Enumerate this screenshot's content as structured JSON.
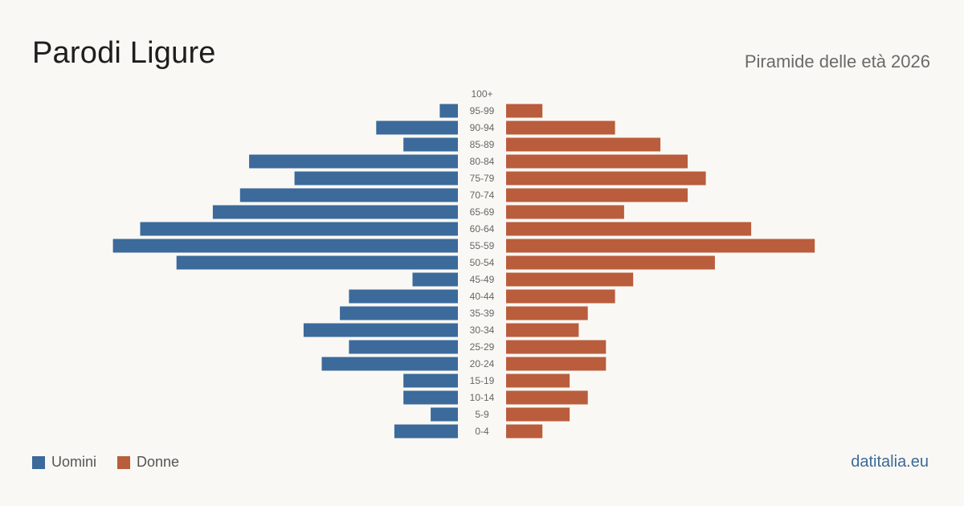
{
  "header": {
    "title": "Parodi Ligure",
    "subtitle": "Piramide delle età 2026"
  },
  "legend": {
    "men_label": "Uomini",
    "women_label": "Donne"
  },
  "footer": {
    "brand": "datitalia.eu"
  },
  "colors": {
    "men": "#3b6a9b",
    "women": "#b95d3c",
    "background": "#faf8f4"
  },
  "chart_data": {
    "type": "bar",
    "orientation": "horizontal-pyramid",
    "categories": [
      "100+",
      "95-99",
      "90-94",
      "85-89",
      "80-84",
      "75-79",
      "70-74",
      "65-69",
      "60-64",
      "55-59",
      "50-54",
      "45-49",
      "40-44",
      "35-39",
      "30-34",
      "25-29",
      "20-24",
      "15-19",
      "10-14",
      "5-9",
      "0-4"
    ],
    "series": [
      {
        "name": "Uomini",
        "values": [
          0,
          2,
          9,
          6,
          23,
          18,
          24,
          27,
          35,
          38,
          31,
          5,
          12,
          13,
          17,
          12,
          15,
          6,
          6,
          3,
          7
        ]
      },
      {
        "name": "Donne",
        "values": [
          0,
          4,
          12,
          17,
          20,
          22,
          20,
          13,
          27,
          34,
          23,
          14,
          12,
          9,
          8,
          11,
          11,
          7,
          9,
          7,
          4
        ]
      }
    ],
    "axis_range": [
      0,
      40
    ],
    "grid": false,
    "legend_position": "bottom-left"
  }
}
